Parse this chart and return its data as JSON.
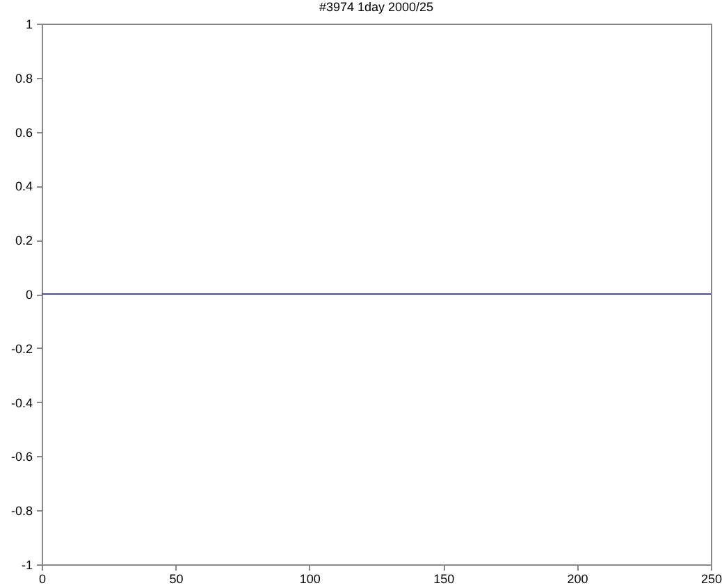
{
  "chart_data": {
    "type": "line",
    "title": "#3974  1day 2000/25",
    "x": [
      0,
      250
    ],
    "series": [
      {
        "color": "#4a4aa8",
        "values": [
          0,
          0
        ]
      }
    ],
    "xlim": [
      0,
      250
    ],
    "xticks": [
      0,
      50,
      100,
      150,
      200,
      250
    ],
    "ylim": [
      -1,
      1
    ],
    "yticks": [
      -1,
      -0.8,
      -0.6,
      -0.4,
      -0.2,
      0,
      0.2,
      0.4,
      0.6,
      0.8,
      1
    ],
    "grid": false
  }
}
